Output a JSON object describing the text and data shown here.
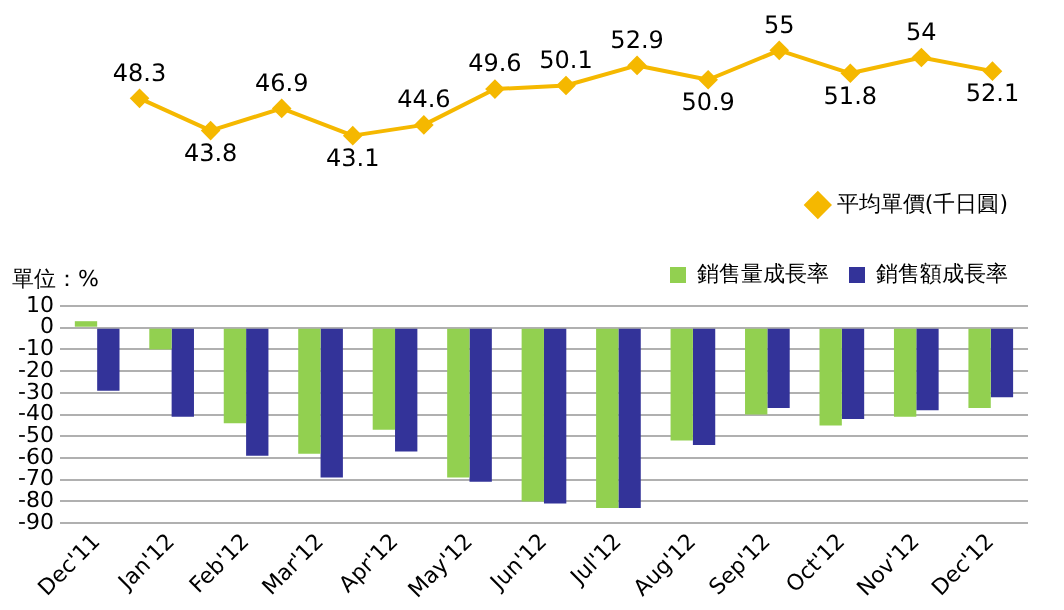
{
  "chart_data": [
    {
      "type": "line",
      "categories": [
        null,
        null,
        null,
        null,
        null,
        null,
        null,
        null,
        null,
        null,
        null,
        null,
        null
      ],
      "series": [
        {
          "name": "平均單價(千日圓)",
          "color": "#f5b800",
          "values": [
            48.3,
            43.8,
            46.9,
            43.1,
            44.6,
            49.6,
            50.1,
            52.9,
            50.9,
            55,
            51.8,
            54,
            52.1
          ]
        }
      ],
      "data_labels": true,
      "marker": "diamond",
      "legend": "bottom right",
      "grid": false
    },
    {
      "type": "bar",
      "ylabel": "單位：%",
      "categories": [
        "Dec'11",
        "Jan'12",
        "Feb'12",
        "Mar'12",
        "Apr'12",
        "May'12",
        "Jun'12",
        "Jul'12",
        "Aug'12",
        "Sep'12",
        "Oct'12",
        "Nov'12",
        "Dec'12"
      ],
      "series": [
        {
          "name": "銷售量成長率",
          "color": "#92d050",
          "values": [
            3,
            -10,
            -44,
            -58,
            -47,
            -69,
            -80,
            -83,
            -52,
            -40,
            -45,
            -41,
            -37
          ]
        },
        {
          "name": "銷售額成長率",
          "color": "#333399",
          "values": [
            -29,
            -41,
            -59,
            -69,
            -57,
            -71,
            -81,
            -83,
            -54,
            -37,
            -42,
            -38,
            -32
          ]
        }
      ],
      "ylim": [
        -90,
        10
      ],
      "yticks": [
        10,
        0,
        -10,
        -20,
        -30,
        -40,
        -50,
        -60,
        -70,
        -80,
        -90
      ],
      "grid": "y",
      "legend": "top right"
    }
  ]
}
